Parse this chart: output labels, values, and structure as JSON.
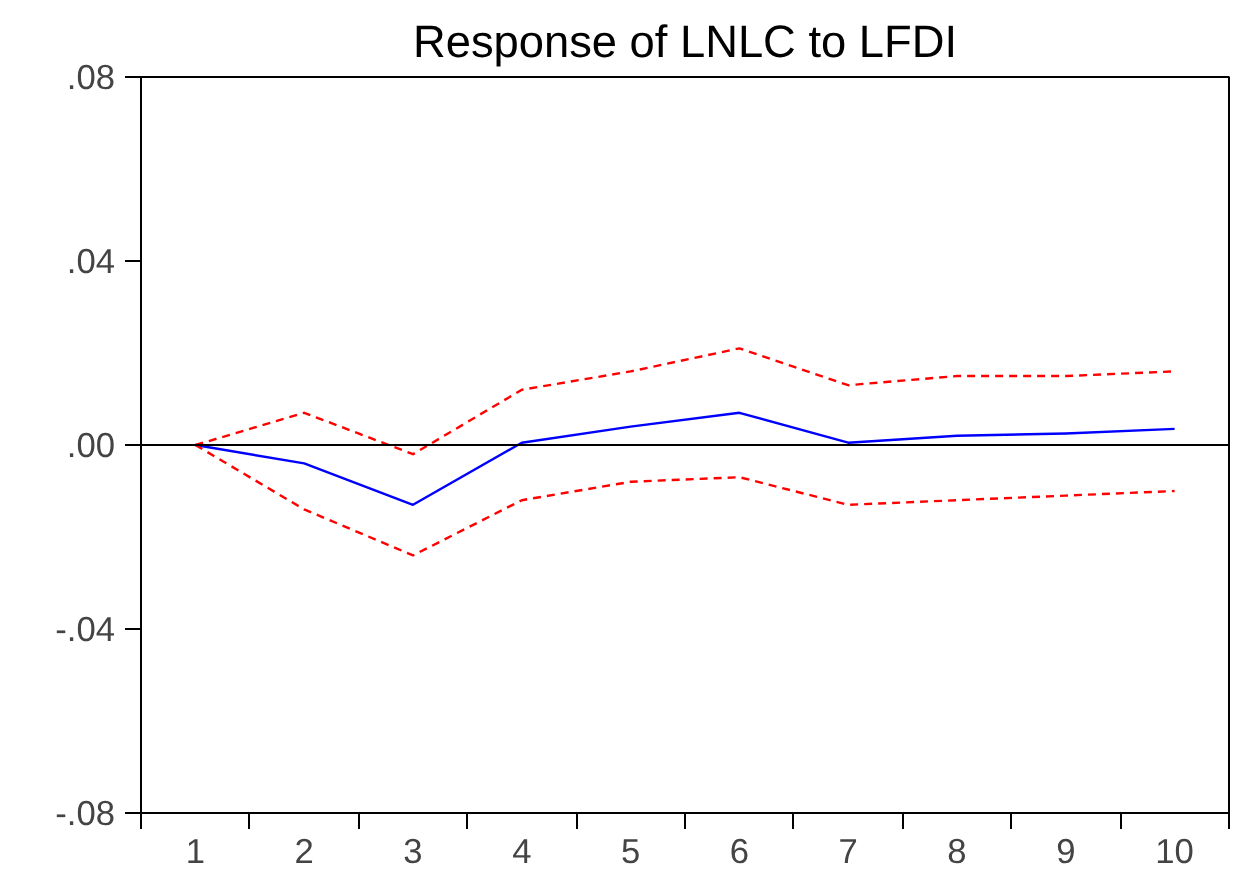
{
  "chart_data": {
    "type": "line",
    "title": "Response of LNLC to LFDI",
    "categories": [
      "1",
      "2",
      "3",
      "4",
      "5",
      "6",
      "7",
      "8",
      "9",
      "10"
    ],
    "series": [
      {
        "color": "#0000ff",
        "line_style": "solid",
        "values": [
          0,
          -0.004,
          -0.013,
          0.0005,
          0.004,
          0.007,
          0.0005,
          0.002,
          0.0025,
          0.0035
        ]
      },
      {
        "color": "#ff0000",
        "line_style": "dashed",
        "values": [
          0,
          0.007,
          -0.002,
          0.012,
          0.016,
          0.021,
          0.013,
          0.015,
          0.015,
          0.016
        ]
      },
      {
        "color": "#ff0000",
        "line_style": "dashed",
        "values": [
          0,
          -0.014,
          -0.024,
          -0.012,
          -0.008,
          -0.007,
          -0.013,
          -0.012,
          -0.011,
          -0.01
        ]
      }
    ],
    "ylim": [
      -0.08,
      0.08
    ],
    "yticks": [
      {
        "value": -0.08,
        "label": "-.08"
      },
      {
        "value": -0.04,
        "label": "-.04"
      },
      {
        "value": 0,
        "label": ".00"
      },
      {
        "value": 0.04,
        "label": ".04"
      },
      {
        "value": 0.08,
        "label": ".08"
      }
    ],
    "ref_lines": [
      {
        "axis": "y",
        "value": 0,
        "color": "#000000"
      }
    ],
    "grid": false,
    "marker": "none"
  }
}
